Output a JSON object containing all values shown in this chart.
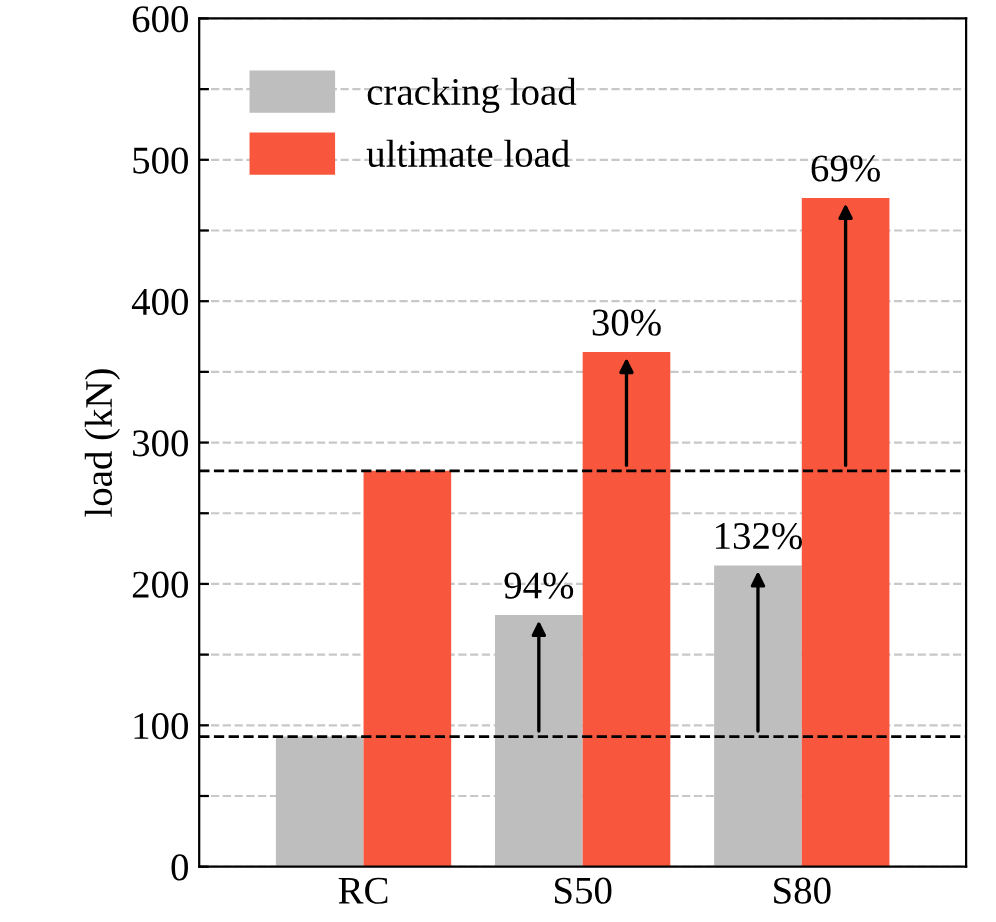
{
  "chart_data": {
    "type": "bar",
    "ylabel": "load (kN)",
    "categories": [
      "RC",
      "S50",
      "S80"
    ],
    "series": [
      {
        "name": "cracking load",
        "color": "#bebebe",
        "values": [
          92,
          178,
          213
        ]
      },
      {
        "name": "ultimate load",
        "color": "#f8573e",
        "values": [
          280,
          364,
          473
        ]
      }
    ],
    "ylim": [
      0,
      600
    ],
    "yticks": [
      0,
      {
        "value": 50,
        "label": null
      },
      100,
      {
        "value": 150,
        "label": null
      },
      200,
      {
        "value": 250,
        "label": null
      },
      300,
      {
        "value": 350,
        "label": null
      },
      400,
      {
        "value": 450,
        "label": null
      },
      500,
      {
        "value": 550,
        "label": null
      },
      600
    ],
    "grid": "y",
    "legend": "top left",
    "ref_lines": [
      {
        "axis": "y",
        "value": 92,
        "color": "#000000",
        "line_style": "dashed"
      },
      {
        "axis": "y",
        "value": 280,
        "color": "#000000",
        "line_style": "dashed"
      }
    ],
    "annotations": [
      {
        "text": "94%",
        "x": "S50",
        "y": 178
      },
      {
        "text": "30%",
        "x": "S50",
        "y": 364
      },
      {
        "text": "132%",
        "x": "S80",
        "y": 213
      },
      {
        "text": "69%",
        "x": "S80",
        "y": 473
      }
    ]
  }
}
